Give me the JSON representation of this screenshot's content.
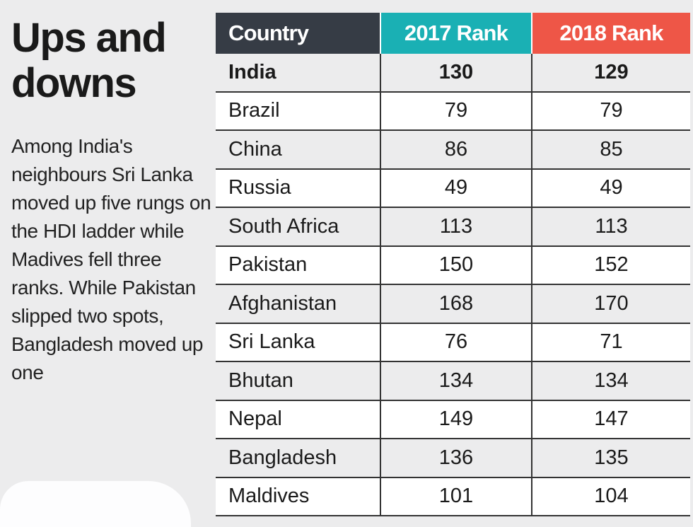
{
  "title": "Ups and downs",
  "description": "Among India's neighbours Sri Lanka moved up five rungs on the HDI ladder while Madives fell three ranks. While Pakistan slipped two spots, Bangladesh moved up one",
  "colors": {
    "country_header": "#363c45",
    "rank_2017_header": "#1ab0b4",
    "rank_2018_header": "#ee5647"
  },
  "chart_data": {
    "type": "table",
    "columns": [
      "Country",
      "2017 Rank",
      "2018 Rank"
    ],
    "rows": [
      [
        "India",
        "130",
        "129"
      ],
      [
        "Brazil",
        "79",
        "79"
      ],
      [
        "China",
        "86",
        "85"
      ],
      [
        "Russia",
        "49",
        "49"
      ],
      [
        "South Africa",
        "113",
        "113"
      ],
      [
        "Pakistan",
        "150",
        "152"
      ],
      [
        "Afghanistan",
        "168",
        "170"
      ],
      [
        "Sri Lanka",
        "76",
        "71"
      ],
      [
        "Bhutan",
        "134",
        "134"
      ],
      [
        "Nepal",
        "149",
        "147"
      ],
      [
        "Bangladesh",
        "136",
        "135"
      ],
      [
        "Maldives",
        "101",
        "104"
      ]
    ]
  }
}
